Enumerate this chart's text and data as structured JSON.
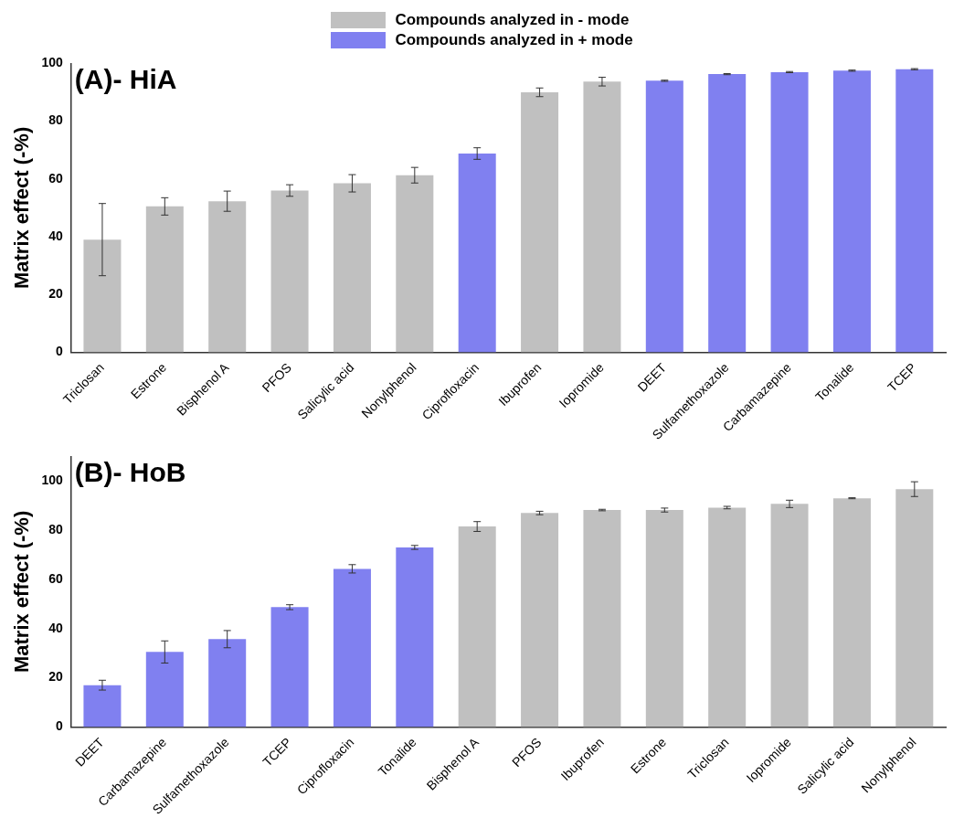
{
  "chart_data": [
    {
      "type": "bar",
      "title": "(A)- HiA",
      "ylabel": "Matrix effect (-%)",
      "categories": [
        "Triclosan",
        "Estrone",
        "Bisphenol A",
        "PFOS",
        "Salicylic acid",
        "Nonylphenol",
        "Ciprofloxacin",
        "Ibuprofen",
        "Iopromide",
        "DEET",
        "Sulfamethoxazole",
        "Carbamazepine",
        "Tonalide",
        "TCEP"
      ],
      "series": [
        {
          "name": "Compounds analyzed in - mode",
          "color": "#c0c0c0",
          "values": [
            39,
            50.5,
            52.3,
            56,
            58.5,
            61.3,
            null,
            90,
            93.7,
            null,
            null,
            null,
            null,
            null
          ],
          "errors": [
            12.5,
            3,
            3.5,
            2,
            3,
            2.7,
            null,
            1.5,
            1.5,
            null,
            null,
            null,
            null,
            null
          ]
        },
        {
          "name": "Compounds analyzed in + mode",
          "color": "#8080f0",
          "values": [
            null,
            null,
            null,
            null,
            null,
            null,
            68.8,
            null,
            null,
            94,
            96.3,
            97,
            97.5,
            98
          ],
          "errors": [
            null,
            null,
            null,
            null,
            null,
            null,
            2,
            null,
            null,
            0.2,
            0.2,
            0.2,
            0.2,
            0.2
          ]
        }
      ],
      "ylim": [
        0,
        100
      ],
      "yticks": [
        0,
        20,
        40,
        60,
        80,
        100
      ],
      "grid": false,
      "legend": "top"
    },
    {
      "type": "bar",
      "title": "(B)- HoB",
      "ylabel": "Matrix effect (-%)",
      "categories": [
        "DEET",
        "Carbamazepine",
        "Sulfamethoxazole",
        "TCEP",
        "Ciprofloxacin",
        "Tonalide",
        "Bisphenol A",
        "PFOS",
        "Ibuprofen",
        "Estrone",
        "Triclosan",
        "Iopromide",
        "Salicylic acid",
        "Nonylphenol"
      ],
      "series": [
        {
          "color": "#8080f0",
          "values": [
            17,
            30.5,
            35.7,
            48.7,
            64.3,
            73,
            null,
            null,
            null,
            null,
            null,
            null,
            null,
            null
          ],
          "errors": [
            2,
            4.5,
            3.5,
            1,
            1.7,
            0.8,
            null,
            null,
            null,
            null,
            null,
            null,
            null,
            null
          ]
        },
        {
          "color": "#c0c0c0",
          "values": [
            null,
            null,
            null,
            null,
            null,
            null,
            81.5,
            87,
            88.2,
            88.2,
            89.2,
            90.7,
            93,
            96.7
          ],
          "errors": [
            null,
            null,
            null,
            null,
            null,
            null,
            2,
            0.7,
            0.3,
            0.8,
            0.5,
            1.5,
            0.2,
            3
          ]
        }
      ],
      "ylim": [
        0,
        110
      ],
      "yticks": [
        0,
        20,
        40,
        60,
        80,
        100
      ],
      "grid": false
    }
  ]
}
